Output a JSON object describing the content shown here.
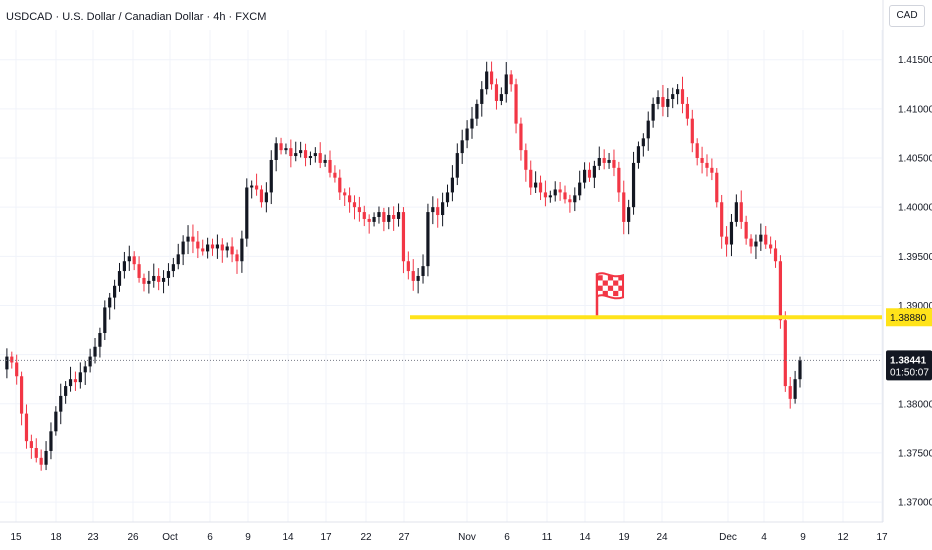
{
  "chart_data": {
    "type": "candlestick",
    "title": "USDCAD · U.S. Dollar / Canadian Dollar · 4h · FXCM",
    "currency": "CAD",
    "timeframe": "4h",
    "colors": {
      "up": "#131722",
      "down": "#f23645",
      "support": "#ffe31a",
      "flag": "#f23645"
    },
    "ylim": [
      1.3695,
      1.4168
    ],
    "y_ticks": [
      "1.37000",
      "1.37500",
      "1.38000",
      "1.38500",
      "1.39000",
      "1.39500",
      "1.40000",
      "1.40500",
      "1.41000",
      "1.41500"
    ],
    "x_ticks": [
      "15",
      "18",
      "23",
      "26",
      "Oct",
      "6",
      "9",
      "14",
      "17",
      "22",
      "27",
      "Nov",
      "6",
      "11",
      "14",
      "19",
      "24",
      "Dec",
      "4",
      "9",
      "12",
      "17"
    ],
    "grid": true,
    "support_level": {
      "value": 1.3888,
      "label": "1.38880"
    },
    "current_price": {
      "value": 1.38441,
      "label": "1.38441",
      "countdown": "01:50:07"
    },
    "marker": {
      "type": "checkered-flag",
      "at_level": 1.3888
    },
    "price_path": [
      1.3835,
      1.3848,
      1.3842,
      1.3828,
      1.379,
      1.3762,
      1.3755,
      1.3745,
      1.3738,
      1.3752,
      1.3772,
      1.3792,
      1.3808,
      1.3818,
      1.3825,
      1.3822,
      1.3832,
      1.3838,
      1.3848,
      1.3858,
      1.3872,
      1.3898,
      1.3908,
      1.392,
      1.3935,
      1.3945,
      1.395,
      1.3942,
      1.3928,
      1.3922,
      1.3925,
      1.393,
      1.3924,
      1.3928,
      1.3935,
      1.3942,
      1.3952,
      1.3965,
      1.397,
      1.3965,
      1.3958,
      1.3955,
      1.3962,
      1.3958,
      1.3962,
      1.3956,
      1.396,
      1.3952,
      1.3945,
      1.3968,
      1.402,
      1.4022,
      1.4018,
      1.4005,
      1.4015,
      1.4048,
      1.4065,
      1.4058,
      1.406,
      1.4052,
      1.4055,
      1.4058,
      1.405,
      1.4052,
      1.4055,
      1.4045,
      1.4048,
      1.4035,
      1.403,
      1.4015,
      1.4012,
      1.4005,
      1.4,
      1.3995,
      1.3988,
      1.3985,
      1.399,
      1.3995,
      1.3985,
      1.3992,
      1.3988,
      1.3995,
      1.3945,
      1.3935,
      1.3925,
      1.393,
      1.394,
      1.3995,
      1.4,
      1.3992,
      1.4005,
      1.4015,
      1.403,
      1.4055,
      1.4068,
      1.408,
      1.409,
      1.4105,
      1.412,
      1.4138,
      1.4125,
      1.4108,
      1.4115,
      1.4135,
      1.4125,
      1.4085,
      1.4058,
      1.4038,
      1.402,
      1.4025,
      1.4015,
      1.401,
      1.4012,
      1.4018,
      1.4015,
      1.4008,
      1.4005,
      1.4012,
      1.4025,
      1.4038,
      1.403,
      1.4042,
      1.405,
      1.4045,
      1.4048,
      1.404,
      1.4015,
      1.3985,
      1.4,
      1.4045,
      1.4062,
      1.407,
      1.4088,
      1.4105,
      1.4112,
      1.4102,
      1.411,
      1.4115,
      1.412,
      1.4105,
      1.409,
      1.4065,
      1.405,
      1.4045,
      1.404,
      1.4035,
      1.4005,
      1.397,
      1.3962,
      1.3985,
      1.4005,
      1.3985,
      1.3968,
      1.396,
      1.3965,
      1.3972,
      1.3962,
      1.3958,
      1.3945,
      1.3885,
      1.3818,
      1.3805,
      1.3825,
      1.3844
    ]
  }
}
